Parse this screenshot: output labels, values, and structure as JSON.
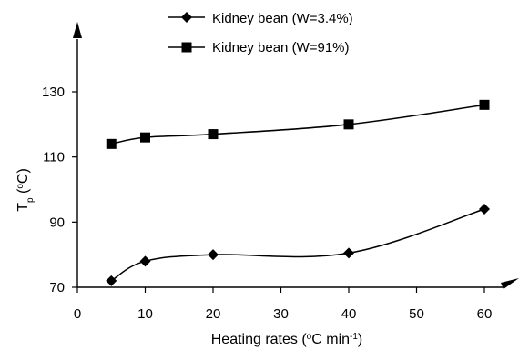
{
  "chart_data": {
    "type": "line",
    "x_ticks": [
      0,
      10,
      20,
      30,
      40,
      50,
      60
    ],
    "y_ticks": [
      70,
      90,
      110,
      130
    ],
    "xlim": [
      0,
      60
    ],
    "ylim": [
      70,
      130
    ],
    "xlabel": {
      "main": "Heating rates (",
      "sup1": "o",
      "mid": "C min",
      "sup2": "-1",
      "end": ")"
    },
    "ylabel": {
      "main": "T",
      "sub": "p",
      "mid": " (",
      "sup": "o",
      "end": "C)"
    },
    "grid": false,
    "legend_position": "top-center",
    "series": [
      {
        "name": "Kidney bean (W=3.4%)",
        "marker": "diamond",
        "x": [
          5,
          10,
          20,
          40,
          60
        ],
        "y": [
          72,
          78,
          80,
          80.5,
          94
        ]
      },
      {
        "name": "Kidney bean (W=91%)",
        "marker": "square",
        "x": [
          5,
          10,
          20,
          40,
          60
        ],
        "y": [
          114,
          116,
          117,
          120,
          126
        ]
      }
    ]
  }
}
